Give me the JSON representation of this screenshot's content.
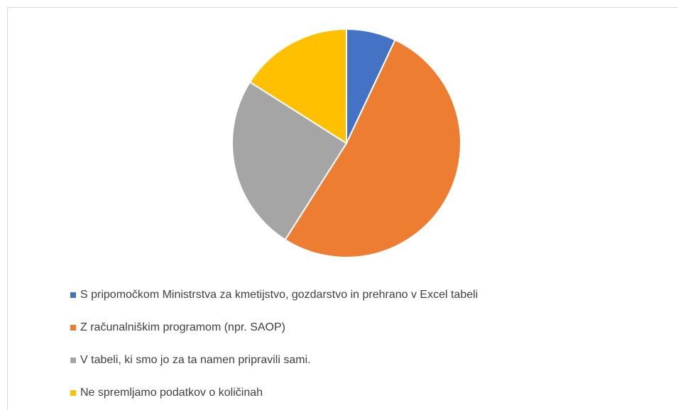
{
  "chart_data": {
    "type": "pie",
    "categories": [
      "S pripomočkom Ministrstva za kmetijstvo, gozdarstvo in prehrano v Excel tabeli",
      "Z računalniškim programom (npr. SAOP)",
      "V tabeli, ki smo jo za ta namen pripravili sami.",
      "Ne spremljamo podatkov o količinah"
    ],
    "values": [
      7,
      52,
      25,
      16
    ],
    "colors": [
      "#4472c4",
      "#ed7d31",
      "#a5a5a5",
      "#ffc000"
    ],
    "legend": "bottom"
  }
}
